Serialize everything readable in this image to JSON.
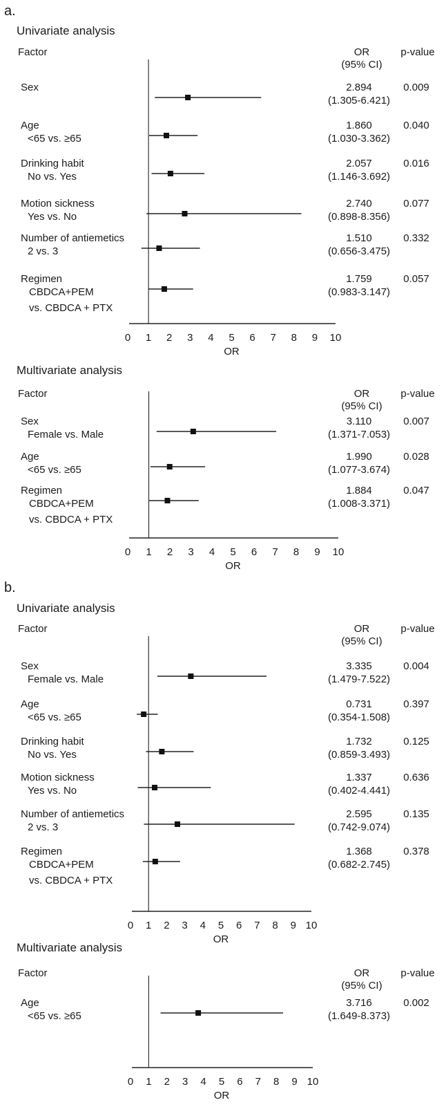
{
  "panels": [
    {
      "label": "a.",
      "analyses": [
        {
          "title": "Univariate analysis",
          "factor_header": "Factor",
          "or_header": "OR",
          "ci_header": "(95% CI)",
          "p_header": "p-value",
          "xlabel": "OR",
          "rows": [
            {
              "name": "Sex",
              "sub": [],
              "or": 2.894,
              "lo": 1.305,
              "hi": 6.421,
              "or_text": "2.894",
              "ci_text": "(1.305-6.421)",
              "p_text": "0.009"
            },
            {
              "name": "Age",
              "sub": [
                "<65 vs. ≥65"
              ],
              "or": 1.86,
              "lo": 1.03,
              "hi": 3.362,
              "or_text": "1.860",
              "ci_text": "(1.030-3.362)",
              "p_text": "0.040"
            },
            {
              "name": "Drinking habit",
              "sub": [
                "No vs. Yes"
              ],
              "or": 2.057,
              "lo": 1.146,
              "hi": 3.692,
              "or_text": "2.057",
              "ci_text": "(1.146-3.692)",
              "p_text": "0.016"
            },
            {
              "name": "Motion sickness",
              "sub": [
                "Yes vs. No"
              ],
              "or": 2.74,
              "lo": 0.898,
              "hi": 8.356,
              "or_text": "2.740",
              "ci_text": "(0.898-8.356)",
              "p_text": "0.077"
            },
            {
              "name": "Number of antiemetics",
              "sub": [
                "2 vs. 3"
              ],
              "or": 1.51,
              "lo": 0.656,
              "hi": 3.475,
              "or_text": "1.510",
              "ci_text": "(0.656-3.475)",
              "p_text": "0.332"
            },
            {
              "name": "Regimen",
              "sub": [
                "CBDCA+PEM",
                "vs. CBDCA + PTX"
              ],
              "or": 1.759,
              "lo": 0.983,
              "hi": 3.147,
              "or_text": "1.759",
              "ci_text": "(0.983-3.147)",
              "p_text": "0.057"
            }
          ]
        },
        {
          "title": "Multivariate analysis",
          "factor_header": "Factor",
          "or_header": "OR",
          "ci_header": "(95% CI)",
          "p_header": "p-value",
          "xlabel": "OR",
          "rows": [
            {
              "name": "Sex",
              "sub": [
                "Female vs. Male"
              ],
              "or": 3.11,
              "lo": 1.371,
              "hi": 7.053,
              "or_text": "3.110",
              "ci_text": "(1.371-7.053)",
              "p_text": "0.007"
            },
            {
              "name": "Age",
              "sub": [
                "<65 vs. ≥65"
              ],
              "or": 1.99,
              "lo": 1.077,
              "hi": 3.674,
              "or_text": "1.990",
              "ci_text": "(1.077-3.674)",
              "p_text": "0.028"
            },
            {
              "name": "Regimen",
              "sub": [
                "CBDCA+PEM",
                "vs. CBDCA + PTX"
              ],
              "or": 1.884,
              "lo": 1.008,
              "hi": 3.371,
              "or_text": "1.884",
              "ci_text": "(1.008-3.371)",
              "p_text": "0.047"
            }
          ]
        }
      ]
    },
    {
      "label": "b.",
      "analyses": [
        {
          "title": "Univariate analysis",
          "factor_header": "Factor",
          "or_header": "OR",
          "ci_header": "(95% CI)",
          "p_header": "p-value",
          "xlabel": "OR",
          "rows": [
            {
              "name": "Sex",
              "sub": [
                "Female vs. Male"
              ],
              "or": 3.335,
              "lo": 1.479,
              "hi": 7.522,
              "or_text": "3.335",
              "ci_text": "(1.479-7.522)",
              "p_text": "0.004"
            },
            {
              "name": "Age",
              "sub": [
                "<65 vs. ≥65"
              ],
              "or": 0.731,
              "lo": 0.354,
              "hi": 1.508,
              "or_text": "0.731",
              "ci_text": "(0.354-1.508)",
              "p_text": "0.397"
            },
            {
              "name": "Drinking habit",
              "sub": [
                "No vs. Yes"
              ],
              "or": 1.732,
              "lo": 0.859,
              "hi": 3.493,
              "or_text": "1.732",
              "ci_text": "(0.859-3.493)",
              "p_text": "0.125"
            },
            {
              "name": "Motion sickness",
              "sub": [
                "Yes vs. No"
              ],
              "or": 1.337,
              "lo": 0.402,
              "hi": 4.441,
              "or_text": "1.337",
              "ci_text": "(0.402-4.441)",
              "p_text": "0.636"
            },
            {
              "name": "Number of antiemetics",
              "sub": [
                "2 vs. 3"
              ],
              "or": 2.595,
              "lo": 0.742,
              "hi": 9.074,
              "or_text": "2.595",
              "ci_text": "(0.742-9.074)",
              "p_text": "0.135"
            },
            {
              "name": "Regimen",
              "sub": [
                "CBDCA+PEM",
                "vs. CBDCA + PTX"
              ],
              "or": 1.368,
              "lo": 0.682,
              "hi": 2.745,
              "or_text": "1.368",
              "ci_text": "(0.682-2.745)",
              "p_text": "0.378"
            }
          ]
        },
        {
          "title": "Multivariate analysis",
          "factor_header": "Factor",
          "or_header": "OR",
          "ci_header": "(95% CI)",
          "p_header": "p-value",
          "xlabel": "OR",
          "rows": [
            {
              "name": "Age",
              "sub": [
                "<65 vs. ≥65"
              ],
              "or": 3.716,
              "lo": 1.649,
              "hi": 8.373,
              "or_text": "3.716",
              "ci_text": "(1.649-8.373)",
              "p_text": "0.002"
            }
          ]
        }
      ]
    }
  ],
  "chart_data": [
    {
      "type": "scatter",
      "panel": "a.",
      "title": "Univariate analysis",
      "xlabel": "OR",
      "xlim": [
        0,
        10
      ],
      "xticks": [
        0,
        1,
        2,
        3,
        4,
        5,
        6,
        7,
        8,
        9,
        10
      ],
      "reference_line": 1,
      "categories": [
        "Sex",
        "Age",
        "Drinking habit",
        "Motion sickness",
        "Number of antiemetics",
        "Regimen"
      ],
      "or": [
        2.894,
        1.86,
        2.057,
        2.74,
        1.51,
        1.759
      ],
      "ci_low": [
        1.305,
        1.03,
        1.146,
        0.898,
        0.656,
        0.983
      ],
      "ci_high": [
        6.421,
        3.362,
        3.692,
        8.356,
        3.475,
        3.147
      ],
      "p_value": [
        0.009,
        0.04,
        0.016,
        0.077,
        0.332,
        0.057
      ]
    },
    {
      "type": "scatter",
      "panel": "a.",
      "title": "Multivariate analysis",
      "xlabel": "OR",
      "xlim": [
        0,
        10
      ],
      "xticks": [
        0,
        1,
        2,
        3,
        4,
        5,
        6,
        7,
        8,
        9,
        10
      ],
      "reference_line": 1,
      "categories": [
        "Sex",
        "Age",
        "Regimen"
      ],
      "or": [
        3.11,
        1.99,
        1.884
      ],
      "ci_low": [
        1.371,
        1.077,
        1.008
      ],
      "ci_high": [
        7.053,
        3.674,
        3.371
      ],
      "p_value": [
        0.007,
        0.028,
        0.047
      ]
    },
    {
      "type": "scatter",
      "panel": "b.",
      "title": "Univariate analysis",
      "xlabel": "OR",
      "xlim": [
        0,
        10
      ],
      "xticks": [
        0,
        1,
        2,
        3,
        4,
        5,
        6,
        7,
        8,
        9,
        10
      ],
      "reference_line": 1,
      "categories": [
        "Sex",
        "Age",
        "Drinking habit",
        "Motion sickness",
        "Number of antiemetics",
        "Regimen"
      ],
      "or": [
        3.335,
        0.731,
        1.732,
        1.337,
        2.595,
        1.368
      ],
      "ci_low": [
        1.479,
        0.354,
        0.859,
        0.402,
        0.742,
        0.682
      ],
      "ci_high": [
        7.522,
        1.508,
        3.493,
        4.441,
        9.074,
        2.745
      ],
      "p_value": [
        0.004,
        0.397,
        0.125,
        0.636,
        0.135,
        0.378
      ]
    },
    {
      "type": "scatter",
      "panel": "b.",
      "title": "Multivariate analysis",
      "xlabel": "OR",
      "xlim": [
        0,
        10
      ],
      "xticks": [
        0,
        1,
        2,
        3,
        4,
        5,
        6,
        7,
        8,
        9,
        10
      ],
      "reference_line": 1,
      "categories": [
        "Age"
      ],
      "or": [
        3.716
      ],
      "ci_low": [
        1.649
      ],
      "ci_high": [
        8.373
      ],
      "p_value": [
        0.002
      ]
    }
  ]
}
